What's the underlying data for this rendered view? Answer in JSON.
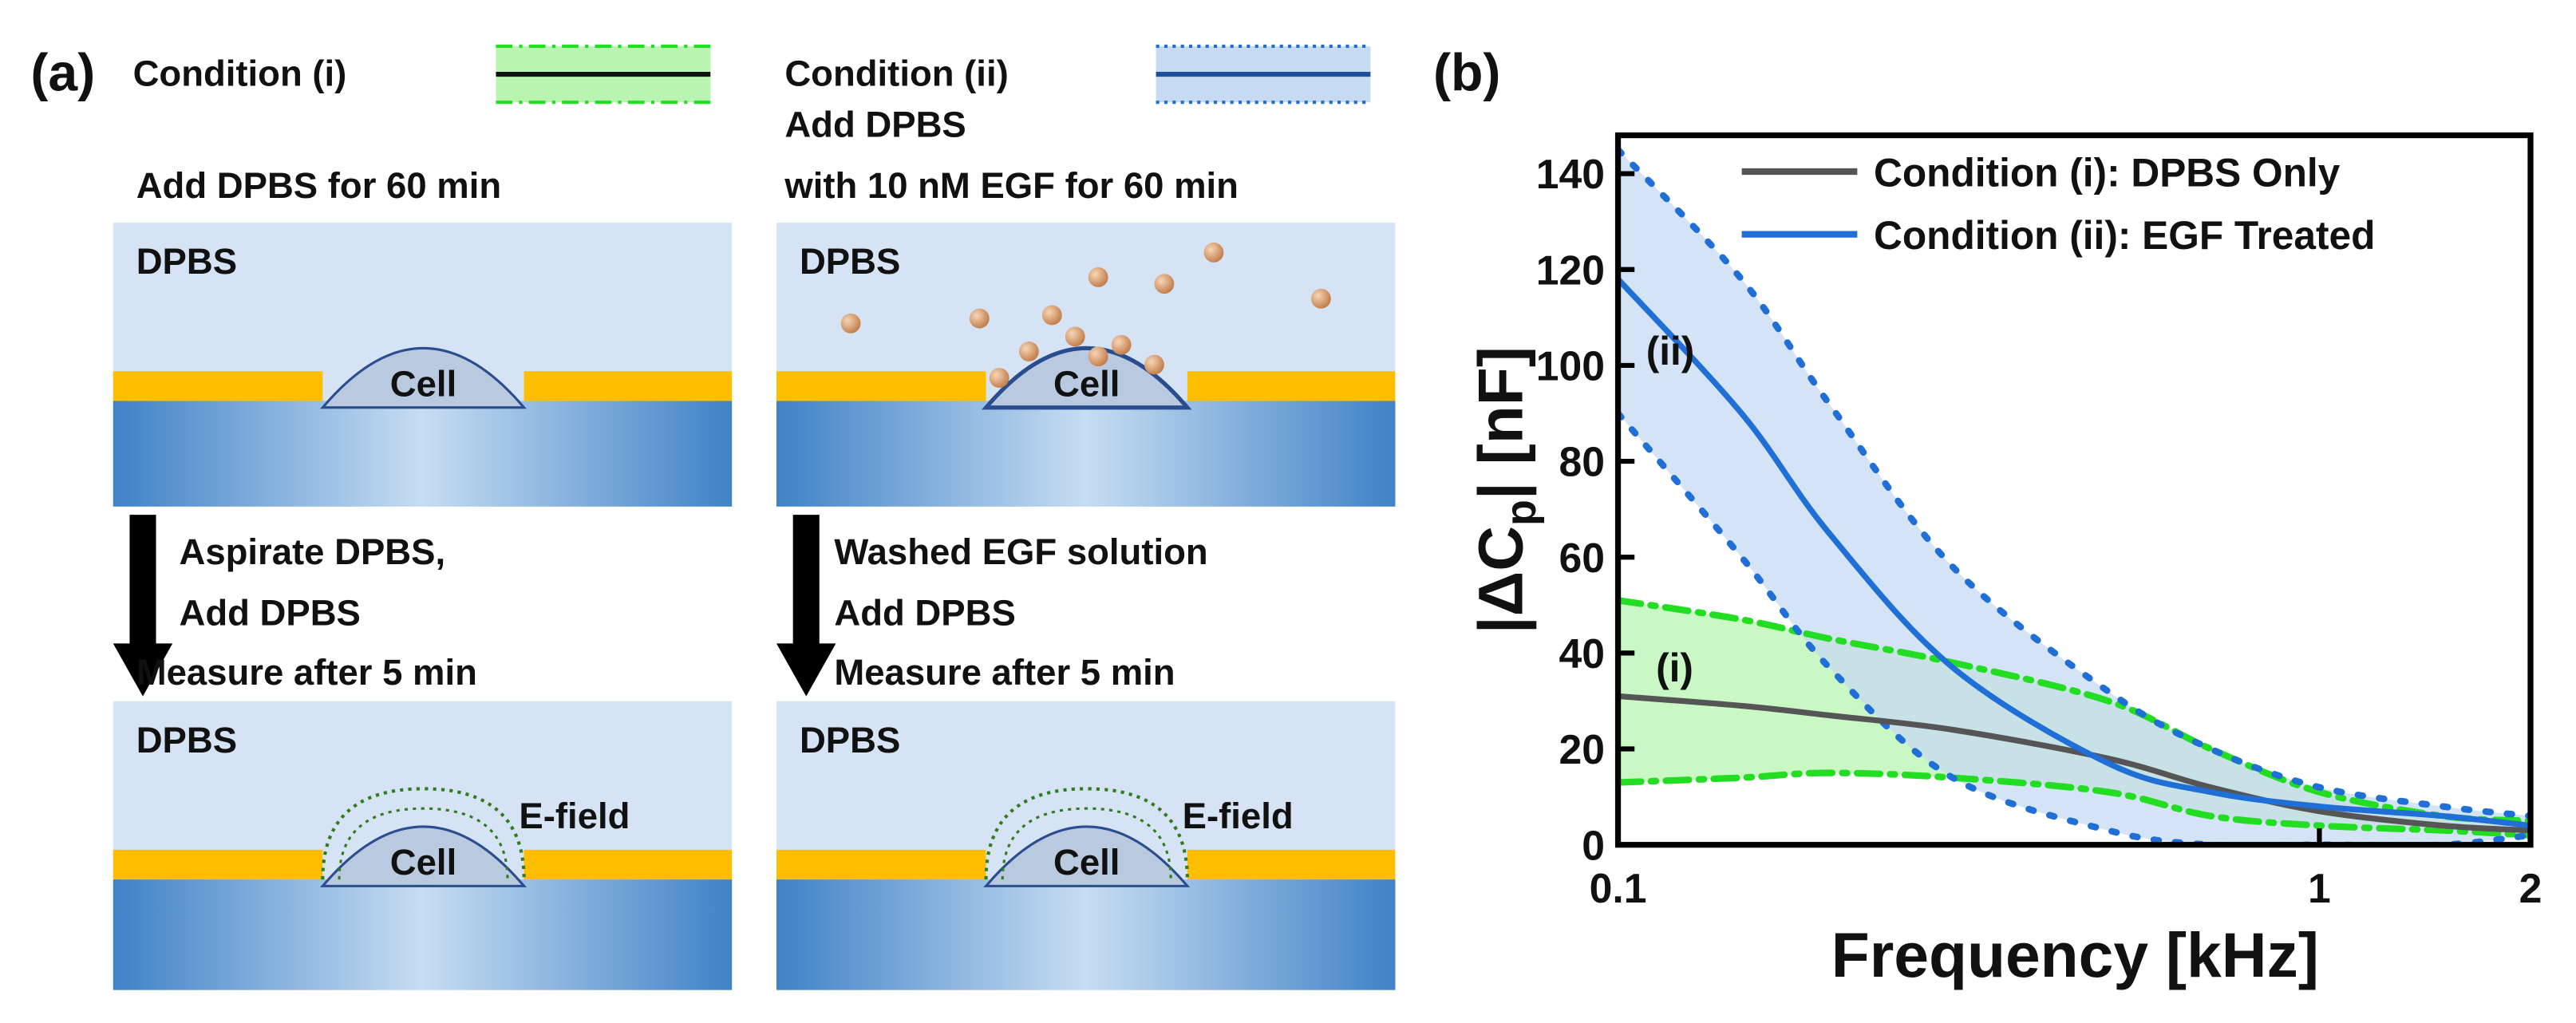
{
  "panel_a": {
    "label": "(a)",
    "legend": [
      "Condition (i)",
      "Condition (ii)"
    ],
    "left": {
      "step1": "Add DPBS for 60 min",
      "medium_top": "DPBS",
      "cell_top": "Cell",
      "step2": [
        "Aspirate DPBS,",
        "Add DPBS",
        "Measure after 5 min"
      ],
      "medium_bottom": "DPBS",
      "cell_bottom": "Cell",
      "field": "E-field"
    },
    "right": {
      "step1": [
        "Add DPBS",
        "with 10 nM EGF for 60 min"
      ],
      "medium_top": "DPBS",
      "cell_top": "Cell",
      "step2": [
        "Washed EGF solution",
        "Add DPBS",
        "Measure after 5 min"
      ],
      "medium_bottom": "DPBS",
      "cell_bottom": "Cell",
      "field": "E-field"
    }
  },
  "chart_data": {
    "type": "line",
    "label": "(b)",
    "xlabel": "Frequency [kHz]",
    "ylabel": [
      "|ΔC",
      "p",
      "| [nF]"
    ],
    "x": [
      0.1,
      0.15,
      0.2,
      0.3,
      0.5,
      0.7,
      1,
      1.5,
      2
    ],
    "xlim": [
      0.1,
      2
    ],
    "xticks": [
      0.1,
      1,
      2
    ],
    "xscale": "log",
    "ylim": [
      0,
      148
    ],
    "yticks": [
      0,
      20,
      40,
      60,
      80,
      100,
      120,
      140
    ],
    "legend": "upper right",
    "series": [
      {
        "name": "Condition (i): DPBS Only",
        "color": "#555555",
        "band_color": "#22dd22",
        "band_fill": "#b8f5b0",
        "values": [
          31,
          29,
          27,
          24,
          18,
          12,
          7,
          4,
          3
        ],
        "upper": [
          51,
          47,
          43,
          38,
          30,
          20,
          11,
          6,
          5
        ],
        "lower": [
          13,
          14,
          15,
          14,
          11,
          6,
          4,
          3,
          2
        ]
      },
      {
        "name": "Condition (ii): EGF Treated",
        "color": "#1f6fd6",
        "band_color": "#1f6fd6",
        "band_fill": "#c6daf2",
        "values": [
          118,
          90,
          65,
          37,
          17,
          11,
          8,
          6,
          4
        ],
        "upper": [
          145,
          118,
          92,
          58,
          32,
          20,
          12,
          8,
          6
        ],
        "lower": [
          90,
          60,
          37,
          14,
          3,
          0,
          0,
          0,
          2
        ]
      }
    ],
    "annotations": [
      "(ii)",
      "(i)"
    ]
  }
}
